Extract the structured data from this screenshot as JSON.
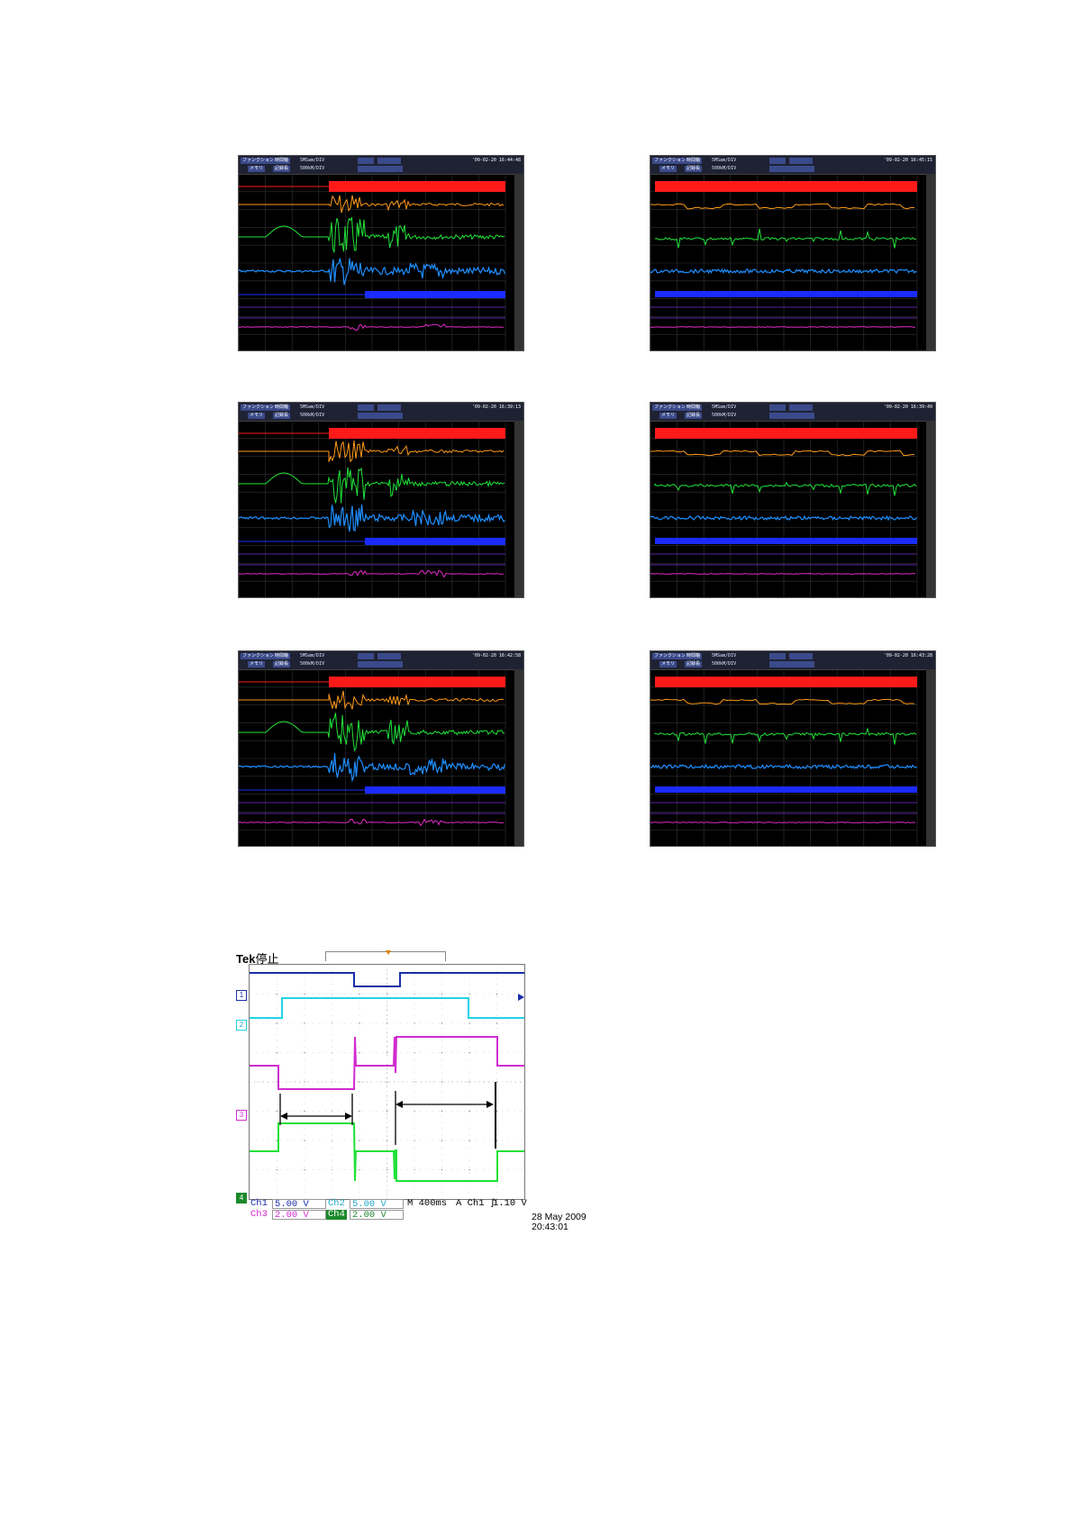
{
  "recorder_screens": [
    {
      "timestamp": "'09-02-20 16:44:48",
      "row": "top",
      "side": "left"
    },
    {
      "timestamp": "'09-02-20 16:45:15",
      "row": "top",
      "side": "right"
    },
    {
      "timestamp": "'09-02-20 16:39:13",
      "row": "middle",
      "side": "left"
    },
    {
      "timestamp": "'09-02-20 16:39:49",
      "row": "middle",
      "side": "right"
    },
    {
      "timestamp": "'09-02-20 16:42:58",
      "row": "bottom",
      "side": "left"
    },
    {
      "timestamp": "'09-02-20 16:43:28",
      "row": "bottom",
      "side": "right"
    }
  ],
  "recorder_header": {
    "function_label": "ファンクション",
    "memory_label": "メモリ",
    "time_axis_label": "時間軸",
    "record_length_label": "記録長",
    "rate_a": "5ΜSam/DIV",
    "rate_b": "500kΜ/DIV"
  },
  "recorder_trace_colors": {
    "red": "#ff1a1a",
    "orange": "#ff9a1a",
    "green": "#22e33a",
    "light_blue": "#1f8fff",
    "blue": "#1a2bff",
    "purple": "#7a2bd6",
    "magenta": "#e02bc8"
  },
  "tek": {
    "title_bold": "Tek",
    "title_rest": "停止",
    "channel_markers": [
      "1",
      "2",
      "3",
      "4"
    ],
    "colors": {
      "ch1": "#1a2ea8",
      "ch2": "#22d3e3",
      "ch3": "#d12bcf",
      "ch4": "#22e03a"
    },
    "status": {
      "ch1_label": "Ch1",
      "ch1_value": "5.00 V",
      "ch2_label": "Ch2",
      "ch2_value": "5.00 V",
      "ch3_label": "Ch3",
      "ch3_value": "2.00 V",
      "ch4_label": "Ch4",
      "ch4_value": "2.00 V",
      "timebase": "M 400ms",
      "trigger": "A  Ch1  ʃ",
      "trigger_level": "1.10 V"
    },
    "date": "28 May 2009",
    "time": "20:43:01"
  }
}
